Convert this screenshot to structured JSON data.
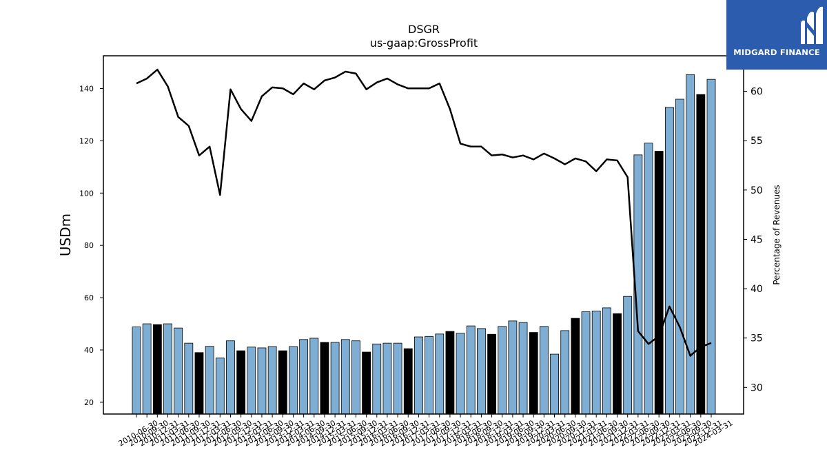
{
  "chart_data": {
    "type": "bar",
    "title": "DSGR",
    "subtitle": "us-gaap:GrossProfit",
    "ylabel": "USDm",
    "y2label": "Percentage of Revenues",
    "ylim": [
      15.5,
      152.5
    ],
    "y2lim": [
      27.3,
      63.6
    ],
    "yticks": [
      20,
      40,
      60,
      80,
      100,
      120,
      140
    ],
    "y2ticks": [
      30,
      35,
      40,
      45,
      50,
      55,
      60
    ],
    "colors": {
      "bar_default": "#7eaed3",
      "bar_highlight": "#000000",
      "line": "#000000"
    },
    "categories": [
      "2010-06-30",
      "2010-09-30",
      "2010-12-31",
      "2011-03-31",
      "2011-06-30",
      "2011-09-30",
      "2011-12-31",
      "2012-03-31",
      "2012-06-30",
      "2012-09-30",
      "2012-12-31",
      "2013-03-31",
      "2013-06-30",
      "2013-09-30",
      "2013-12-31",
      "2014-03-31",
      "2014-06-30",
      "2014-09-30",
      "2014-12-31",
      "2015-03-31",
      "2015-06-30",
      "2015-09-30",
      "2015-12-31",
      "2016-03-31",
      "2016-06-30",
      "2016-09-30",
      "2016-12-31",
      "2017-03-31",
      "2017-06-30",
      "2017-09-30",
      "2017-12-31",
      "2018-03-31",
      "2018-06-30",
      "2018-09-30",
      "2018-12-31",
      "2019-03-31",
      "2019-06-30",
      "2019-09-30",
      "2019-12-31",
      "2020-03-31",
      "2020-06-30",
      "2020-09-30",
      "2020-12-31",
      "2021-03-31",
      "2021-06-30",
      "2021-09-30",
      "2021-12-31",
      "2022-03-31",
      "2022-06-30",
      "2022-09-30",
      "2022-12-31",
      "2023-03-31",
      "2023-06-30",
      "2023-09-30",
      "2023-12-31",
      "2024-03-31"
    ],
    "series": [
      {
        "kind": "bar",
        "values": [
          48.8,
          50.0,
          49.7,
          50.0,
          48.4,
          42.6,
          39.0,
          41.4,
          36.9,
          43.5,
          39.7,
          41.1,
          40.8,
          41.3,
          39.7,
          41.3,
          44.0,
          44.5,
          42.9,
          42.9,
          44.0,
          43.5,
          39.2,
          42.3,
          42.6,
          42.6,
          40.5,
          45.0,
          45.2,
          46.1,
          47.1,
          46.4,
          49.2,
          48.2,
          46.0,
          49.0,
          51.1,
          50.5,
          46.7,
          49.0,
          38.4,
          47.4,
          52.1,
          54.6,
          54.9,
          56.1,
          53.9,
          60.5,
          114.6,
          119.1,
          116.0,
          132.8,
          135.9,
          145.3,
          137.7,
          143.5
        ],
        "highlight": [
          2,
          6,
          10,
          14,
          18,
          22,
          26,
          30,
          34,
          38,
          42,
          46,
          50,
          54
        ]
      },
      {
        "kind": "line",
        "axis": "right",
        "values": [
          60.8,
          61.3,
          62.2,
          60.5,
          57.4,
          56.5,
          53.5,
          54.4,
          49.5,
          60.2,
          58.2,
          57.0,
          59.5,
          60.4,
          60.3,
          59.7,
          60.8,
          60.2,
          61.1,
          61.4,
          62.0,
          61.8,
          60.2,
          60.9,
          61.3,
          60.7,
          60.3,
          60.3,
          60.3,
          60.8,
          58.2,
          54.7,
          54.4,
          54.4,
          53.5,
          53.6,
          53.3,
          53.5,
          53.1,
          53.7,
          53.2,
          52.6,
          53.2,
          52.9,
          51.9,
          53.1,
          53.0,
          51.3,
          35.7,
          34.4,
          35.2,
          38.2,
          36.1,
          33.2,
          34.1,
          34.5
        ]
      }
    ]
  },
  "logo": {
    "text": "MIDGARD FINANCE",
    "icon": "midgard-logo-icon"
  }
}
